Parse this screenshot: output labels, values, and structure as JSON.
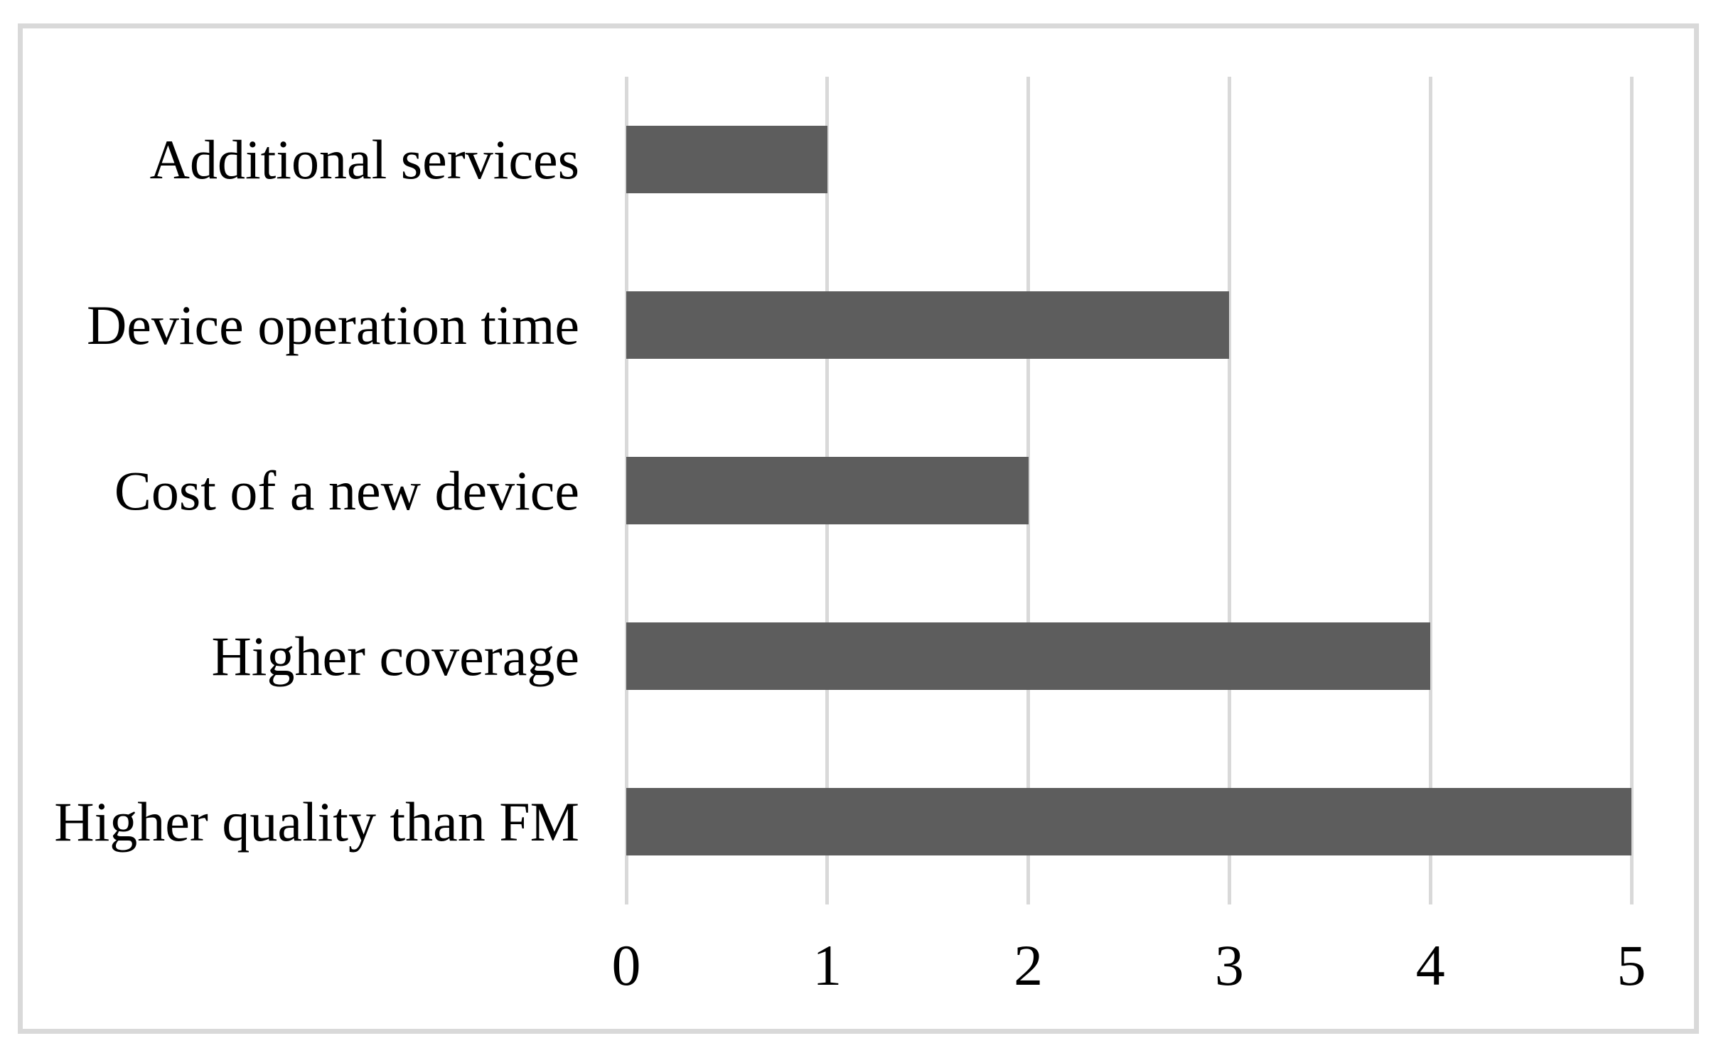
{
  "chart_data": {
    "type": "bar",
    "orientation": "horizontal",
    "title": "",
    "xlabel": "",
    "ylabel": "",
    "categories": [
      "Additional services",
      "Device operation time",
      "Cost of a new device",
      "Higher coverage",
      "Higher quality than FM"
    ],
    "values": [
      1,
      3,
      2,
      4,
      5
    ],
    "xlim": [
      0,
      5
    ],
    "xticks": [
      "0",
      "1",
      "2",
      "3",
      "4",
      "5"
    ],
    "grid": true,
    "legend": "none",
    "colors": {
      "bar_fill": "#5d5d5d",
      "gridline": "#d9d9d9",
      "frame_border": "#d9d9d9",
      "background": "#ffffff",
      "text": "#000000"
    }
  }
}
